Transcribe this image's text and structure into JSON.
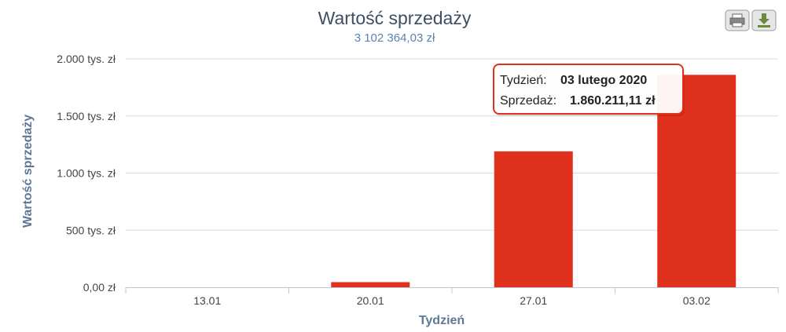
{
  "chart_data": {
    "type": "bar",
    "title": "Wartość sprzedaży",
    "subtitle": "3 102 364,03 zł",
    "xlabel": "Tydzień",
    "ylabel": "Wartość sprzedaży",
    "categories": [
      "13.01",
      "20.01",
      "27.01",
      "03.02"
    ],
    "values": [
      0,
      45000,
      1190000,
      1860211.11
    ],
    "ylim": [
      0,
      2000000
    ],
    "yticks": [
      0,
      500000,
      1000000,
      1500000,
      2000000
    ],
    "ytick_labels": [
      "0,00 zł",
      "500 tys. zł",
      "1.000 tys. zł",
      "1.500 tys. zł",
      "2.000 tys. zł"
    ],
    "grid": true,
    "bar_color": "#e0301e"
  },
  "tooltip": {
    "week_label": "Tydzień:",
    "week_value": "03 lutego 2020",
    "sales_label": "Sprzedaż:",
    "sales_value": "1.860.211,11 zł",
    "border_color": "#e0301e"
  },
  "toolbar": {
    "print_icon": "print-icon",
    "download_icon": "download-icon"
  }
}
